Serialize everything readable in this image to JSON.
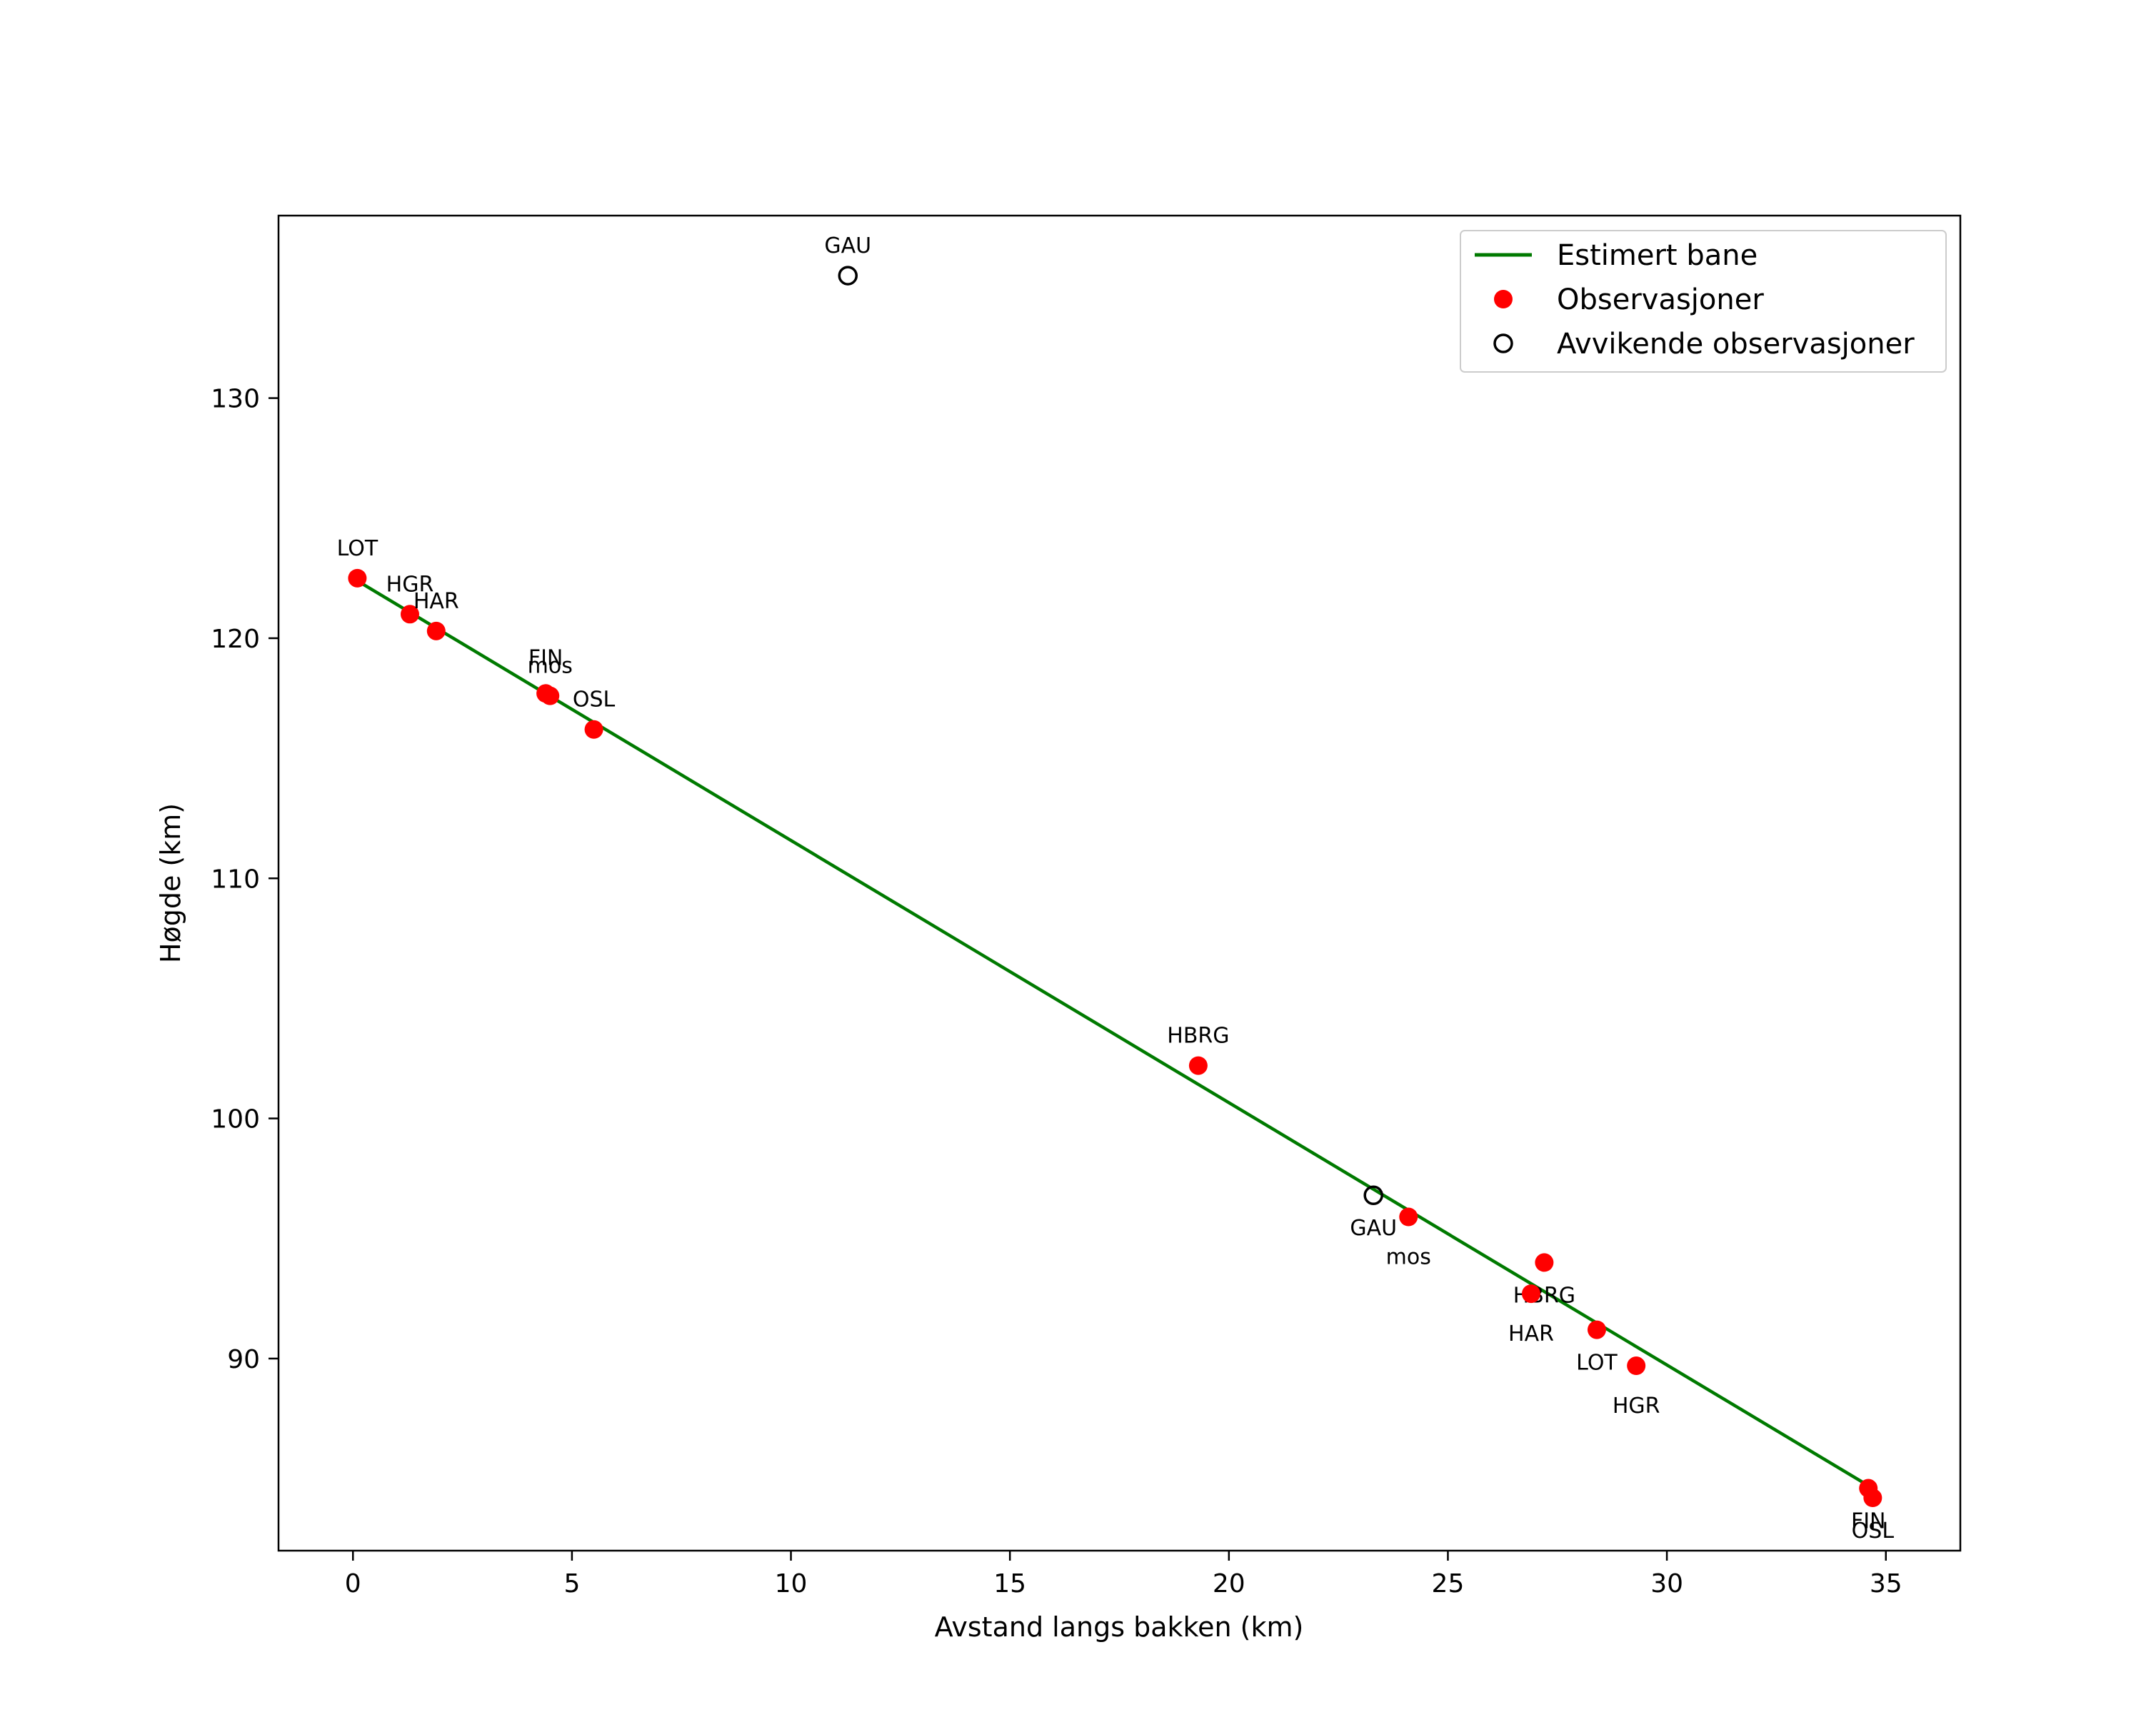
{
  "chart_data": {
    "type": "scatter",
    "title": "",
    "xlabel": "Avstand langs bakken (km)",
    "ylabel": "Høgde (km)",
    "xlim": [
      -1.7,
      36.7
    ],
    "ylim": [
      82.0,
      137.6
    ],
    "xticks": [
      0,
      5,
      10,
      15,
      20,
      25,
      30,
      35
    ],
    "yticks": [
      90,
      100,
      110,
      120,
      130
    ],
    "grid": false,
    "legend_position": "top-right",
    "colors": {
      "line": "#007a00",
      "observation": "#ff0000",
      "outlier_edge": "#000000"
    },
    "series": [
      {
        "name": "Estimert bane",
        "kind": "line",
        "x": [
          0.0,
          34.7
        ],
        "y": [
          122.5,
          84.6
        ]
      },
      {
        "name": "Observasjoner",
        "kind": "points",
        "points": [
          {
            "x": 0.1,
            "y": 122.5,
            "label": "LOT",
            "label_pos": "above"
          },
          {
            "x": 1.3,
            "y": 121.0,
            "label": "HGR",
            "label_pos": "above"
          },
          {
            "x": 1.9,
            "y": 120.3,
            "label": "HAR",
            "label_pos": "above"
          },
          {
            "x": 4.4,
            "y": 117.7,
            "label": "FIN",
            "label_pos": "above-far"
          },
          {
            "x": 4.5,
            "y": 117.6,
            "label": "mos",
            "label_pos": "above"
          },
          {
            "x": 5.5,
            "y": 116.2,
            "label": "OSL",
            "label_pos": "above"
          },
          {
            "x": 19.3,
            "y": 102.2,
            "label": "HBRG",
            "label_pos": "above"
          },
          {
            "x": 24.1,
            "y": 95.9,
            "label": "mos",
            "label_pos": "below-far"
          },
          {
            "x": 27.2,
            "y": 94.0,
            "label": "HBRG",
            "label_pos": "below"
          },
          {
            "x": 26.9,
            "y": 92.7,
            "label": "HAR",
            "label_pos": "below-far"
          },
          {
            "x": 28.4,
            "y": 91.2,
            "label": "LOT",
            "label_pos": "below"
          },
          {
            "x": 29.3,
            "y": 89.7,
            "label": "HGR",
            "label_pos": "below-far"
          },
          {
            "x": 34.6,
            "y": 84.6,
            "label": "FIN",
            "label_pos": "below"
          },
          {
            "x": 34.7,
            "y": 84.2,
            "label": "OSL",
            "label_pos": "below"
          }
        ]
      },
      {
        "name": "Avvikende observasjoner",
        "kind": "points",
        "points": [
          {
            "x": 11.3,
            "y": 135.1,
            "label": "GAU",
            "label_pos": "above"
          },
          {
            "x": 23.3,
            "y": 96.8,
            "label": "GAU",
            "label_pos": "below"
          }
        ]
      }
    ]
  }
}
